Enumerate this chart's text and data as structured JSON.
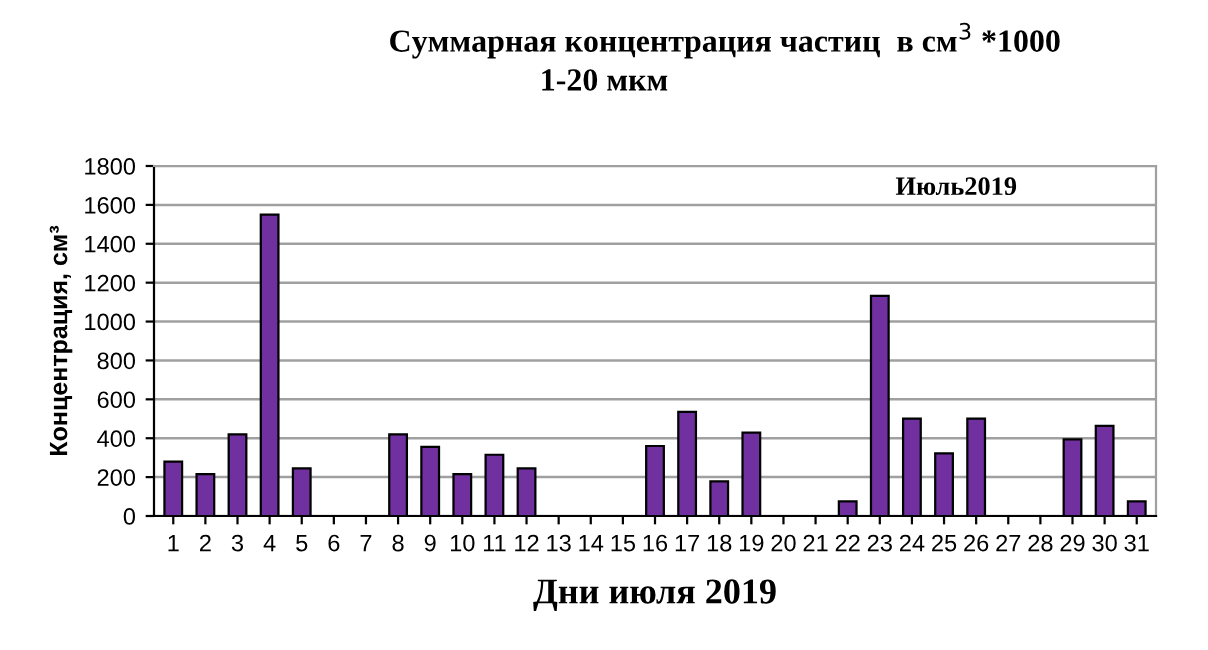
{
  "chart_data": {
    "type": "bar",
    "title": "Суммарная концентрация частиц  в см$^{3}$ *1000",
    "subtitle": "1-20 мкм",
    "xlabel": "Дни июля 2019",
    "ylabel": "Концентрация, см³",
    "annotations": [
      "Июль2019"
    ],
    "categories": [
      "1",
      "2",
      "3",
      "4",
      "5",
      "6",
      "7",
      "8",
      "9",
      "10",
      "11",
      "12",
      "13",
      "14",
      "15",
      "16",
      "17",
      "18",
      "19",
      "20",
      "21",
      "22",
      "23",
      "24",
      "25",
      "26",
      "27",
      "28",
      "29",
      "30",
      "31"
    ],
    "series": [
      {
        "color": "#7030a0",
        "values": [
          280,
          215,
          420,
          1550,
          245,
          null,
          null,
          420,
          355,
          215,
          315,
          245,
          null,
          null,
          null,
          360,
          535,
          178,
          429,
          null,
          null,
          75,
          1132,
          501,
          322,
          501,
          null,
          null,
          394,
          463,
          75
        ]
      }
    ],
    "ylim": [
      0,
      1800
    ],
    "yticks": [
      0,
      200,
      400,
      600,
      800,
      1000,
      1200,
      1400,
      1600,
      1800
    ],
    "grid": "y",
    "legend": false
  }
}
